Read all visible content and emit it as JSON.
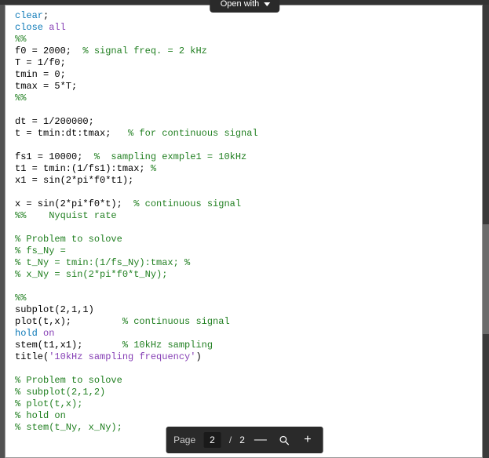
{
  "topbar": {
    "open_with_label": "Open with"
  },
  "code": {
    "lines": [
      [
        {
          "t": "clear",
          "c": "kw"
        },
        {
          "t": ";",
          "c": ""
        }
      ],
      [
        {
          "t": "close ",
          "c": "kw"
        },
        {
          "t": "all",
          "c": "str"
        }
      ],
      [
        {
          "t": "%%",
          "c": "cm"
        }
      ],
      [
        {
          "t": "f0 = 2000;  ",
          "c": ""
        },
        {
          "t": "% signal freq. = 2 kHz",
          "c": "cm"
        }
      ],
      [
        {
          "t": "T = 1/f0;",
          "c": ""
        }
      ],
      [
        {
          "t": "tmin = 0;",
          "c": ""
        }
      ],
      [
        {
          "t": "tmax = 5*T;",
          "c": ""
        }
      ],
      [
        {
          "t": "%%",
          "c": "cm"
        }
      ],
      [
        {
          "t": "",
          "c": ""
        }
      ],
      [
        {
          "t": "dt = 1/200000;",
          "c": ""
        }
      ],
      [
        {
          "t": "t = tmin:dt:tmax;   ",
          "c": ""
        },
        {
          "t": "% for continuous signal",
          "c": "cm"
        }
      ],
      [
        {
          "t": "",
          "c": ""
        }
      ],
      [
        {
          "t": "fs1 = 10000;  ",
          "c": ""
        },
        {
          "t": "%  sampling exmple1 = 10kHz",
          "c": "cm"
        }
      ],
      [
        {
          "t": "t1 = tmin:(1/fs1):tmax; ",
          "c": ""
        },
        {
          "t": "%",
          "c": "cm"
        }
      ],
      [
        {
          "t": "x1 = sin(2*pi*f0*t1);",
          "c": ""
        }
      ],
      [
        {
          "t": "",
          "c": ""
        }
      ],
      [
        {
          "t": "x = sin(2*pi*f0*t);  ",
          "c": ""
        },
        {
          "t": "% continuous signal",
          "c": "cm"
        }
      ],
      [
        {
          "t": "%%    Nyquist rate",
          "c": "cm"
        }
      ],
      [
        {
          "t": "",
          "c": ""
        }
      ],
      [
        {
          "t": "% Problem to solove",
          "c": "cm"
        }
      ],
      [
        {
          "t": "% fs_Ny = ",
          "c": "cm"
        }
      ],
      [
        {
          "t": "% t_Ny = tmin:(1/fs_Ny):tmax; %",
          "c": "cm"
        }
      ],
      [
        {
          "t": "% x_Ny = sin(2*pi*f0*t_Ny);",
          "c": "cm"
        }
      ],
      [
        {
          "t": "",
          "c": ""
        }
      ],
      [
        {
          "t": "%%",
          "c": "cm"
        }
      ],
      [
        {
          "t": "subplot(2,1,1)",
          "c": ""
        }
      ],
      [
        {
          "t": "plot(t,x);         ",
          "c": ""
        },
        {
          "t": "% continuous signal",
          "c": "cm"
        }
      ],
      [
        {
          "t": "hold ",
          "c": "kw"
        },
        {
          "t": "on",
          "c": "str"
        }
      ],
      [
        {
          "t": "stem(t1,x1);       ",
          "c": ""
        },
        {
          "t": "% 10kHz sampling",
          "c": "cm"
        }
      ],
      [
        {
          "t": "title(",
          "c": ""
        },
        {
          "t": "'10kHz sampling frequency'",
          "c": "str"
        },
        {
          "t": ")",
          "c": ""
        }
      ],
      [
        {
          "t": "",
          "c": ""
        }
      ],
      [
        {
          "t": "% Problem to solove",
          "c": "cm"
        }
      ],
      [
        {
          "t": "% subplot(2,1,2)",
          "c": "cm"
        }
      ],
      [
        {
          "t": "% plot(t,x);",
          "c": "cm"
        }
      ],
      [
        {
          "t": "% hold on",
          "c": "cm"
        }
      ],
      [
        {
          "t": "% stem(t_Ny, x_Ny);",
          "c": "cm"
        }
      ]
    ]
  },
  "footer": {
    "page_label": "Page",
    "page_current": "2",
    "page_separator": "/",
    "page_total": "2",
    "zoom_out": "—",
    "zoom_in": "+"
  }
}
